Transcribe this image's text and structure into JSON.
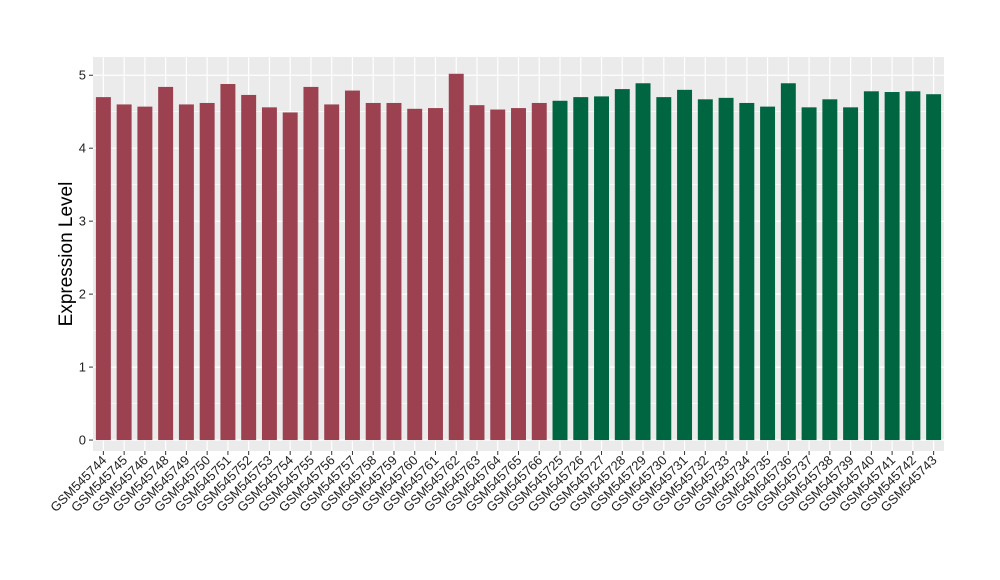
{
  "chart_data": {
    "type": "bar",
    "title": "",
    "xlabel": "",
    "ylabel": "Expression Level",
    "ylim": [
      -0.15,
      5.25
    ],
    "yticks": [
      0,
      1,
      2,
      3,
      4,
      5
    ],
    "grid": true,
    "legend": "none",
    "categories": [
      "GSM545744",
      "GSM545745",
      "GSM545746",
      "GSM545748",
      "GSM545749",
      "GSM545750",
      "GSM545751",
      "GSM545752",
      "GSM545753",
      "GSM545754",
      "GSM545755",
      "GSM545756",
      "GSM545757",
      "GSM545758",
      "GSM545759",
      "GSM545760",
      "GSM545761",
      "GSM545762",
      "GSM545763",
      "GSM545764",
      "GSM545765",
      "GSM545766",
      "GSM545725",
      "GSM545726",
      "GSM545727",
      "GSM545728",
      "GSM545729",
      "GSM545730",
      "GSM545731",
      "GSM545732",
      "GSM545733",
      "GSM545734",
      "GSM545735",
      "GSM545736",
      "GSM545737",
      "GSM545738",
      "GSM545739",
      "GSM545740",
      "GSM545741",
      "GSM545742",
      "GSM545743"
    ],
    "values": [
      4.7,
      4.6,
      4.57,
      4.84,
      4.6,
      4.62,
      4.88,
      4.73,
      4.56,
      4.49,
      4.84,
      4.6,
      4.79,
      4.62,
      4.62,
      4.54,
      4.55,
      5.02,
      4.59,
      4.53,
      4.55,
      4.62,
      4.65,
      4.7,
      4.71,
      4.81,
      4.89,
      4.7,
      4.8,
      4.67,
      4.69,
      4.62,
      4.57,
      4.89,
      4.56,
      4.67,
      4.56,
      4.78,
      4.77,
      4.78,
      4.74
    ],
    "bar_colors": [
      "#9b4150",
      "#9b4150",
      "#9b4150",
      "#9b4150",
      "#9b4150",
      "#9b4150",
      "#9b4150",
      "#9b4150",
      "#9b4150",
      "#9b4150",
      "#9b4150",
      "#9b4150",
      "#9b4150",
      "#9b4150",
      "#9b4150",
      "#9b4150",
      "#9b4150",
      "#9b4150",
      "#9b4150",
      "#9b4150",
      "#9b4150",
      "#9b4150",
      "#006541",
      "#006541",
      "#006541",
      "#006541",
      "#006541",
      "#006541",
      "#006541",
      "#006541",
      "#006541",
      "#006541",
      "#006541",
      "#006541",
      "#006541",
      "#006541",
      "#006541",
      "#006541",
      "#006541",
      "#006541",
      "#006541"
    ],
    "panel_background": "#ebebeb",
    "grid_color": "#ffffff"
  }
}
